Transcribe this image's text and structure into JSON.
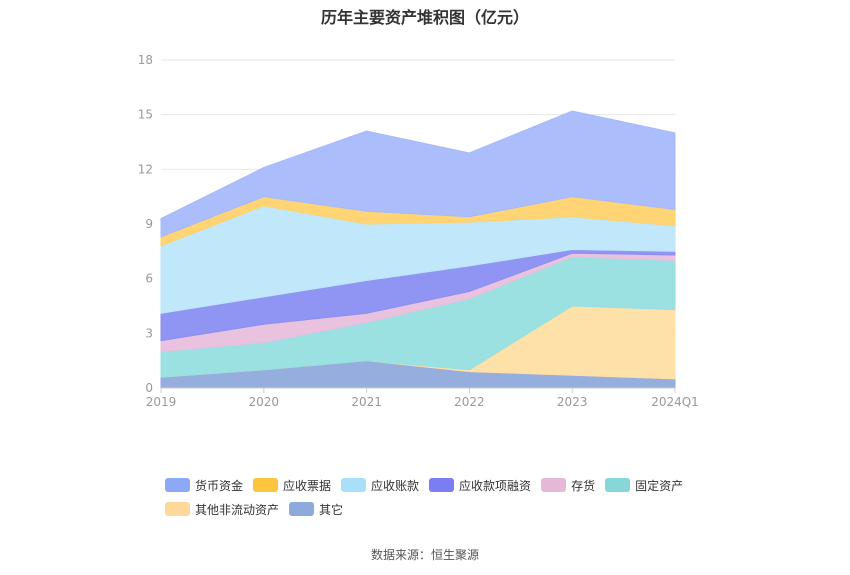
{
  "chart_data": {
    "type": "area",
    "stacked": true,
    "title": "历年主要资产堆积图（亿元）",
    "xlabel": "",
    "ylabel": "",
    "categories": [
      "2019",
      "2020",
      "2021",
      "2022",
      "2023",
      "2024Q1"
    ],
    "ylim": [
      0,
      18
    ],
    "yticks": [
      0,
      3,
      6,
      9,
      12,
      15,
      18
    ],
    "grid": true,
    "legend_position": "bottom",
    "series": [
      {
        "name": "其它",
        "color": "#8faadc",
        "values": [
          0.6,
          1.0,
          1.5,
          0.9,
          0.7,
          0.5
        ]
      },
      {
        "name": "其他非流动资产",
        "color": "#fedfa4",
        "values": [
          0.0,
          0.0,
          0.0,
          0.1,
          3.8,
          3.8
        ]
      },
      {
        "name": "固定资产",
        "color": "#97dfdf",
        "values": [
          1.4,
          1.5,
          2.1,
          3.9,
          2.7,
          2.7
        ]
      },
      {
        "name": "存货",
        "color": "#e8bfdd",
        "values": [
          0.6,
          1.0,
          0.5,
          0.4,
          0.2,
          0.3
        ]
      },
      {
        "name": "应收款项融资",
        "color": "#8a8ef2",
        "values": [
          1.5,
          1.5,
          1.8,
          1.4,
          0.2,
          0.2
        ]
      },
      {
        "name": "应收账款",
        "color": "#bde6fa",
        "values": [
          3.7,
          5.0,
          3.1,
          2.4,
          1.8,
          1.4
        ]
      },
      {
        "name": "应收票据",
        "color": "#fed26e",
        "values": [
          0.5,
          0.5,
          0.7,
          0.3,
          1.1,
          0.9
        ]
      },
      {
        "name": "货币资金",
        "color": "#a6b9fb",
        "values": [
          1.0,
          1.6,
          4.4,
          3.5,
          4.7,
          4.2
        ]
      }
    ],
    "legend_order": [
      "货币资金",
      "应收票据",
      "应收账款",
      "应收款项融资",
      "存货",
      "固定资产",
      "其他非流动资产",
      "其它"
    ],
    "legend_colors": {
      "货币资金": "#8ea8f8",
      "应收票据": "#fdc43f",
      "应收账款": "#a9dff8",
      "应收款项融资": "#7a7ef0",
      "存货": "#e6b8d8",
      "固定资产": "#86d8d8",
      "其他非流动资产": "#fdd89a",
      "其它": "#8eaadc"
    }
  },
  "source": {
    "label": "数据来源：",
    "name": "恒生聚源"
  }
}
